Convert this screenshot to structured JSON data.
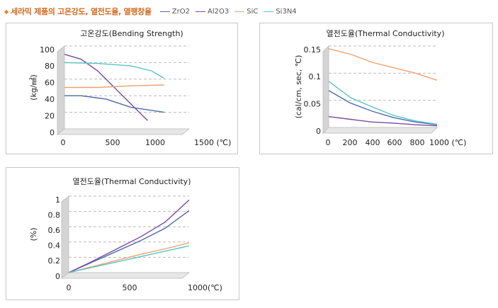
{
  "header": {
    "title": "세라믹 제품의 고온강도, 열전도율, 열팽창율",
    "legend": [
      {
        "name": "ZrO2",
        "color": "#4f6aa8"
      },
      {
        "name": "Al2O3",
        "color": "#7a4aa0"
      },
      {
        "name": "SiC",
        "color": "#f0a070"
      },
      {
        "name": "Si3N4",
        "color": "#58c4c4"
      }
    ]
  },
  "chart_data": [
    {
      "type": "line",
      "title": "고온강도(Bending Strength)",
      "ylabel": "(kg/㎟)",
      "xlabel": "",
      "x_ticks": [
        "0",
        "500",
        "1000",
        "1500 (℃)"
      ],
      "y_ticks": [
        "0",
        "20",
        "40",
        "60",
        "80",
        "100"
      ],
      "xlim": [
        0,
        1500
      ],
      "ylim": [
        0,
        100
      ],
      "grid": true,
      "series": [
        {
          "name": "ZrO2",
          "color": "#4f6aa8",
          "x": [
            0,
            200,
            500,
            800,
            1200
          ],
          "y": [
            40,
            40,
            36,
            26,
            20
          ]
        },
        {
          "name": "Al2O3",
          "color": "#7a4aa0",
          "x": [
            0,
            200,
            400,
            700,
            1000
          ],
          "y": [
            90,
            84,
            70,
            40,
            10
          ]
        },
        {
          "name": "SiC",
          "color": "#f0a070",
          "x": [
            0,
            400,
            800,
            1200
          ],
          "y": [
            50,
            50,
            52,
            53
          ]
        },
        {
          "name": "Si3N4",
          "color": "#58c4c4",
          "x": [
            0,
            400,
            800,
            1050,
            1200
          ],
          "y": [
            80,
            79,
            76,
            70,
            61
          ]
        }
      ]
    },
    {
      "type": "line",
      "title": "열전도율(Thermal Conductivity)",
      "ylabel": "(cal/cm, sec, ℃)",
      "xlabel": "",
      "x_ticks": [
        "0",
        "200",
        "400",
        "600",
        "800",
        "1000 (℃)"
      ],
      "y_ticks": [
        "0",
        "0.05",
        "0.1",
        "0.15"
      ],
      "xlim": [
        0,
        1000
      ],
      "ylim": [
        0,
        0.15
      ],
      "grid": true,
      "series": [
        {
          "name": "ZrO2",
          "color": "#4f6aa8",
          "x": [
            0,
            200,
            400,
            600,
            800,
            1000
          ],
          "y": [
            0.068,
            0.045,
            0.03,
            0.018,
            0.01,
            0.005
          ]
        },
        {
          "name": "Al2O3",
          "color": "#7a4aa0",
          "x": [
            0,
            200,
            400,
            600,
            800,
            1000
          ],
          "y": [
            0.02,
            0.015,
            0.01,
            0.008,
            0.005,
            0.003
          ]
        },
        {
          "name": "SiC",
          "color": "#f0a070",
          "x": [
            0,
            200,
            400,
            600,
            800,
            1000
          ],
          "y": [
            0.145,
            0.135,
            0.12,
            0.11,
            0.1,
            0.087
          ]
        },
        {
          "name": "Si3N4",
          "color": "#58c4c4",
          "x": [
            0,
            200,
            400,
            600,
            800,
            1000
          ],
          "y": [
            0.085,
            0.055,
            0.038,
            0.022,
            0.012,
            0.006
          ]
        }
      ]
    },
    {
      "type": "line",
      "title": "열전도율(Thermal Conductivity)",
      "ylabel": "(%)",
      "xlabel": "",
      "x_ticks": [
        "0",
        "500",
        "1000(℃)"
      ],
      "y_ticks": [
        "0",
        "0.2",
        "0.4",
        "0.6",
        "0.8",
        "1"
      ],
      "xlim": [
        0,
        1000
      ],
      "ylim": [
        0,
        1
      ],
      "grid": true,
      "series": [
        {
          "name": "ZrO2",
          "color": "#4f6aa8",
          "x": [
            0,
            200,
            400,
            600,
            800,
            1000
          ],
          "y": [
            0,
            0.14,
            0.28,
            0.42,
            0.58,
            0.81
          ]
        },
        {
          "name": "Al2O3",
          "color": "#7a4aa0",
          "x": [
            0,
            200,
            400,
            600,
            800,
            1000
          ],
          "y": [
            0,
            0.15,
            0.31,
            0.47,
            0.66,
            0.95
          ]
        },
        {
          "name": "SiC",
          "color": "#f0a070",
          "x": [
            0,
            200,
            400,
            600,
            800,
            1000
          ],
          "y": [
            0,
            0.08,
            0.16,
            0.24,
            0.31,
            0.39
          ]
        },
        {
          "name": "Si3N4",
          "color": "#58c4c4",
          "x": [
            0,
            200,
            400,
            600,
            800,
            1000
          ],
          "y": [
            0,
            0.07,
            0.14,
            0.21,
            0.28,
            0.35
          ]
        }
      ]
    }
  ]
}
